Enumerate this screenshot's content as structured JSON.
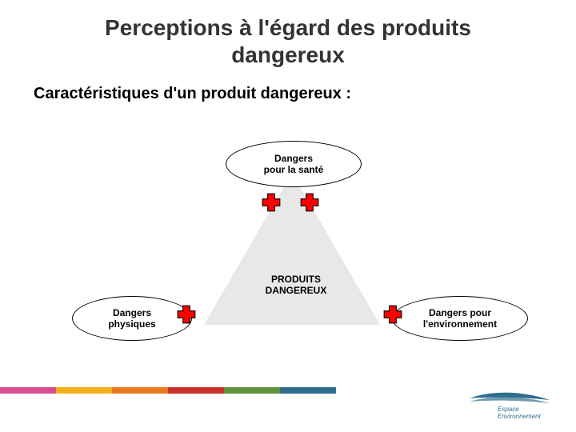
{
  "title_line1": "Perceptions à l'égard des produits",
  "title_line2": "dangereux",
  "subtitle": "Caractéristiques d'un produit dangereux :",
  "diagram": {
    "type": "infographic",
    "center_label_l1": "PRODUITS",
    "center_label_l2": "DANGEREUX",
    "triangle_fill": "#e8e8e8",
    "triangle_border": "#000000",
    "cross_fill": "#ff0000",
    "cross_border": "#000000",
    "ellipse_fill": "#ffffff",
    "ellipse_border": "#000000",
    "nodes": {
      "top": {
        "line1": "Dangers",
        "line2": "pour la santé"
      },
      "left": {
        "line1": "Dangers",
        "line2": "physiques"
      },
      "right": {
        "line1": "Dangers pour",
        "line2": "l'environnement"
      }
    }
  },
  "footer_colors": [
    "#d94f8f",
    "#f2b01e",
    "#e8791e",
    "#c9302c",
    "#5e913b",
    "#2f6d8f",
    "#ffffff"
  ],
  "footer_widths": [
    70,
    70,
    70,
    70,
    70,
    70,
    300
  ],
  "logo": {
    "text_l1": "Espace",
    "text_l2": "Environnement",
    "swoosh_color": "#2f6d8f",
    "text_color": "#2f6d8f"
  }
}
